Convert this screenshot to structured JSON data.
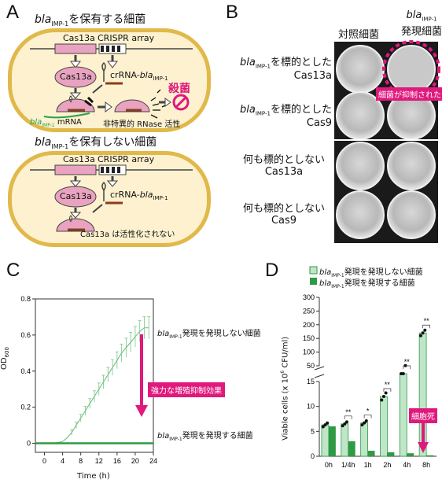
{
  "panels": {
    "a": "A",
    "b": "B",
    "c": "C",
    "d": "D"
  },
  "panelA": {
    "cell1_title_italic": "bla",
    "cell1_title_sub": "IMP-1",
    "cell1_title_rest": "を保有する細菌",
    "cas13a_gene": "Cas13a",
    "crispr_array": "CRISPR array",
    "cas13a_protein": "Cas13a",
    "crrna_prefix": "crRNA-",
    "crrna_italic": "bla",
    "crrna_sub": "IMP-1",
    "mrna_italic": "bla",
    "mrna_sub": "IMP-1",
    "mrna_suffix": " mRNA",
    "nonspecific": "非特異的 RNase 活性",
    "kill": "殺菌",
    "cell2_title_italic": "bla",
    "cell2_title_sub": "IMP-1",
    "cell2_title_rest": "を保有しない細菌",
    "inactive": "Cas13a は活性化されない"
  },
  "panelB": {
    "col1": "対照細菌",
    "col2_italic": "bla",
    "col2_sub": "IMP-1",
    "col2_line2": "発現細菌",
    "row1_italic": "bla",
    "row1_sub": "IMP-1",
    "row1_rest": "を標的とした",
    "row1_line2": "Cas13a",
    "row2_italic": "bla",
    "row2_sub": "IMP-1",
    "row2_rest": "を標的とした",
    "row2_line2": "Cas9",
    "row3_line1": "何も標的としない",
    "row3_line2": "Cas13a",
    "row4_line1": "何も標的としない",
    "row4_line2": "Cas9",
    "suppressed": "細菌が抑制された"
  },
  "panelC": {
    "ylabel": "OD",
    "ylabel_sub": "600",
    "xlabel": "Time (h)",
    "upper_label_italic": "bla",
    "upper_label_sub": "IMP-1",
    "upper_label_rest": "発現を発現しない細菌",
    "lower_label_italic": "bla",
    "lower_label_sub": "IMP-1",
    "lower_label_rest": "発現を発現する細菌",
    "effect": "強力な増殖抑制効果"
  },
  "panelD": {
    "legend1_italic": "bla",
    "legend1_sub": "IMP-1",
    "legend1_rest": "発現を発現しない細菌",
    "legend2_italic": "bla",
    "legend2_sub": "IMP-1",
    "legend2_rest": "発現を発現する細菌",
    "ylabel": "Viable cells (x 10",
    "ylabel_sup": "6",
    "ylabel_rest": " CFU/ml)",
    "death": "細胞死"
  },
  "chart_data": [
    {
      "type": "line",
      "xlabel": "Time (h)",
      "ylabel": "OD600",
      "xlim": [
        -2,
        24
      ],
      "ylim": [
        -0.05,
        0.8
      ],
      "xticks": [
        0,
        4,
        8,
        12,
        16,
        20,
        24
      ],
      "yticks": [
        0,
        0.2,
        0.4,
        0.6,
        0.8
      ],
      "series": [
        {
          "name": "blaIMP-1発現を発現しない細菌",
          "x": [
            -2,
            0,
            2,
            4,
            5,
            6,
            7,
            8,
            9,
            10,
            11,
            12,
            13,
            14,
            15,
            16,
            17,
            18,
            19,
            20,
            21,
            22,
            23
          ],
          "y": [
            0,
            0,
            0,
            0.01,
            0.03,
            0.06,
            0.1,
            0.14,
            0.18,
            0.22,
            0.26,
            0.3,
            0.34,
            0.38,
            0.42,
            0.46,
            0.5,
            0.53,
            0.56,
            0.59,
            0.62,
            0.64,
            0.64
          ]
        },
        {
          "name": "blaIMP-1発現を発現する細菌",
          "x": [
            -2,
            0,
            4,
            8,
            12,
            16,
            20,
            24
          ],
          "y": [
            0,
            0,
            0,
            0,
            0,
            0,
            0,
            0
          ]
        }
      ]
    },
    {
      "type": "bar",
      "categories": [
        "0h",
        "1/4h",
        "1h",
        "2h",
        "4h",
        "8h"
      ],
      "yticks_lower": [
        0,
        5,
        10,
        15
      ],
      "yticks_upper": [
        50,
        100,
        150,
        200,
        250,
        300
      ],
      "series": [
        {
          "name": "blaIMP-1発現を発現しない細菌",
          "values": [
            6.3,
            6.5,
            6.7,
            12,
            48,
            170
          ]
        },
        {
          "name": "blaIMP-1発現を発現する細菌",
          "values": [
            6.0,
            3.0,
            1.1,
            0.8,
            0.6,
            0.2
          ]
        }
      ],
      "significance": [
        "**",
        "*",
        "**",
        "**",
        "**"
      ]
    }
  ]
}
